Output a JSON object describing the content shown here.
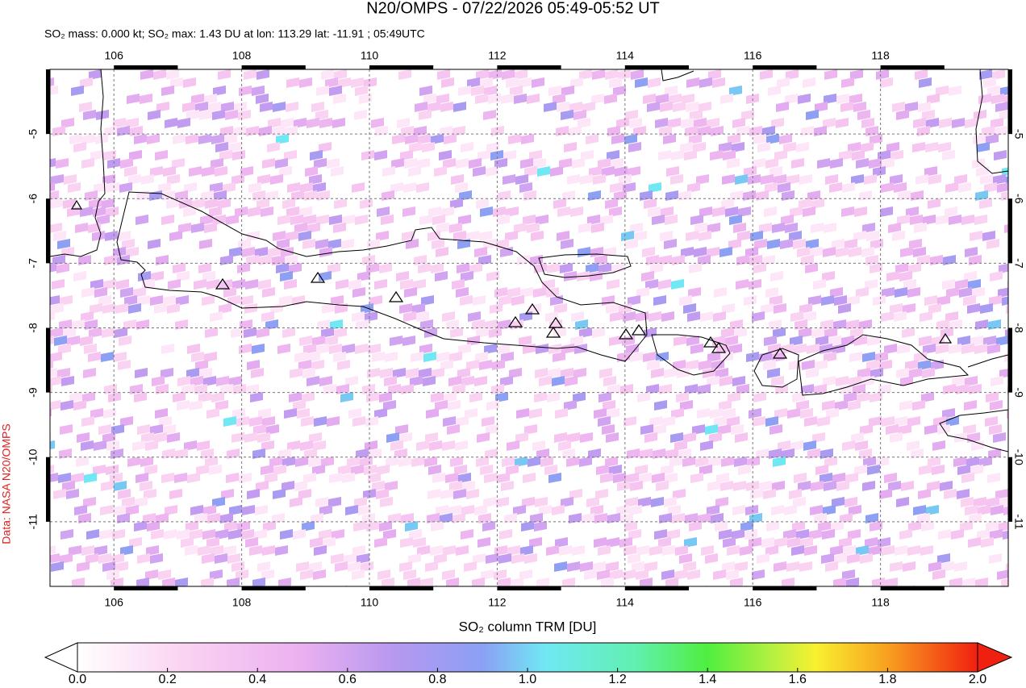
{
  "header": {
    "title": "N20/OMPS - 07/22/2026 05:49-05:52 UT",
    "subtitle": "SO₂ mass: 0.000 kt; SO₂ max: 1.43 DU at lon: 113.29 lat: -11.91 ; 05:49UTC"
  },
  "map": {
    "xlim": [
      105,
      120
    ],
    "ylim": [
      -12,
      -4
    ],
    "xticks": [
      106,
      108,
      110,
      112,
      114,
      116,
      118
    ],
    "yticks": [
      -5,
      -6,
      -7,
      -8,
      -9,
      -10,
      -11
    ],
    "grid": true
  },
  "colorbar": {
    "label": "SO₂ column TRM [DU]",
    "lim": [
      0,
      2
    ],
    "ticks": [
      {
        "value": 0,
        "label": "0.0"
      },
      0.2,
      0.4,
      0.6,
      0.8,
      {
        "value": 1,
        "label": "1.0"
      },
      1.2,
      1.4,
      1.6,
      1.8,
      {
        "value": 2,
        "label": "2.0"
      }
    ]
  },
  "credit": "Data: NASA N20/OMPS"
}
